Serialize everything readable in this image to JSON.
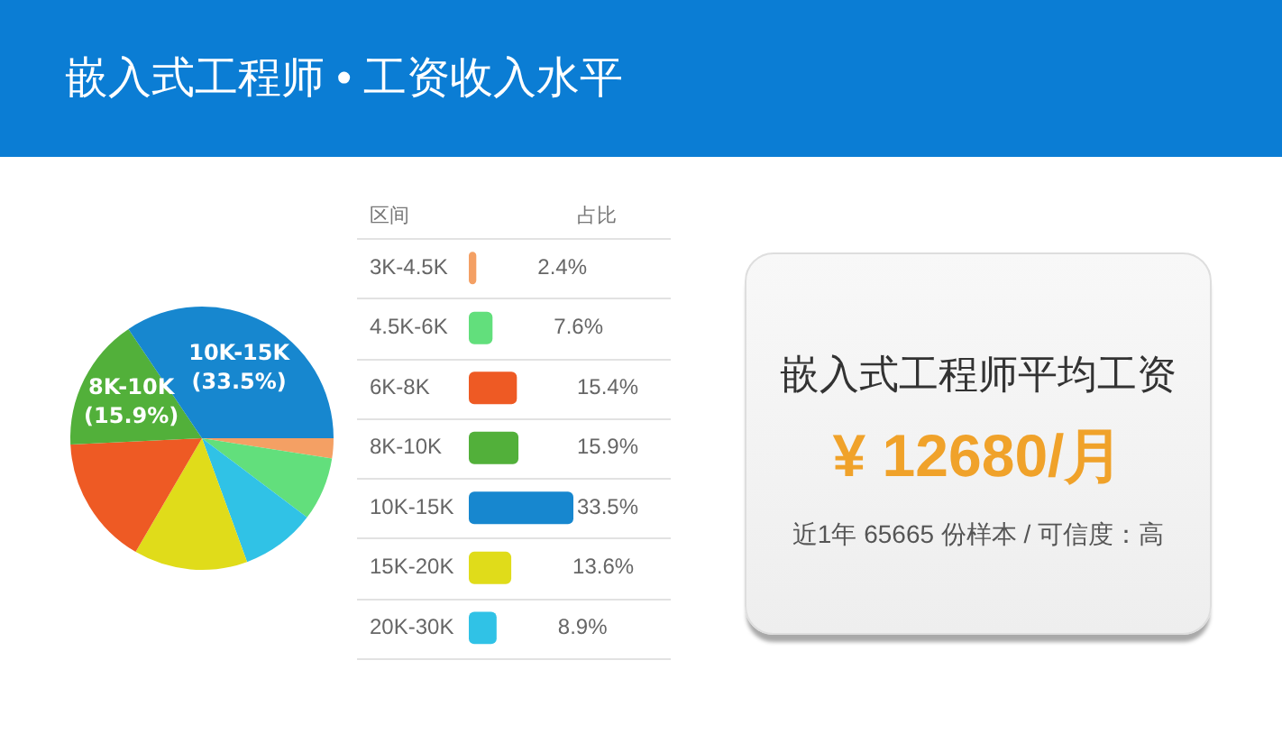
{
  "chart_data": [
    {
      "type": "pie",
      "title": "嵌入式工程师 • 工资收入水平",
      "categories": [
        null,
        null,
        null,
        null,
        null,
        "8K-10K",
        "10K-15K"
      ],
      "values": [
        2.4,
        7.6,
        8.9,
        13.6,
        15.4,
        15.9,
        33.5
      ],
      "colors": [
        "#f4a064",
        "#62df7c",
        "#30c2e6",
        "#e0dc1a",
        "#ee5a24",
        "#52b03a",
        "#1787cf"
      ],
      "value_labels": [
        null,
        null,
        null,
        null,
        null,
        "(15.9%)",
        "(33.5%)"
      ]
    },
    {
      "type": "bar",
      "orientation": "horizontal",
      "ylabel": "区间",
      "xlabel": "占比",
      "categories": [
        "3K-4.5K",
        "4.5K-6K",
        "6K-8K",
        "8K-10K",
        "10K-15K",
        "15K-20K",
        "20K-30K"
      ],
      "values": [
        2.4,
        7.6,
        15.4,
        15.9,
        33.5,
        13.6,
        8.9
      ],
      "colors": [
        "#f4a064",
        "#62df7c",
        "#ee5a24",
        "#52b03a",
        "#1787cf",
        "#e0dc1a",
        "#30c2e6"
      ],
      "value_labels": [
        "2.4%",
        "7.6%",
        "15.4%",
        "15.9%",
        "33.5%",
        "13.6%",
        "8.9%"
      ],
      "grid": "y",
      "tick_labels": "y"
    },
    {
      "type": "other",
      "title": "嵌入式工程师平均工资",
      "annotations": [
        "¥ 12680/月",
        "近1年 65665 份样本 / 可信度：高"
      ]
    }
  ]
}
